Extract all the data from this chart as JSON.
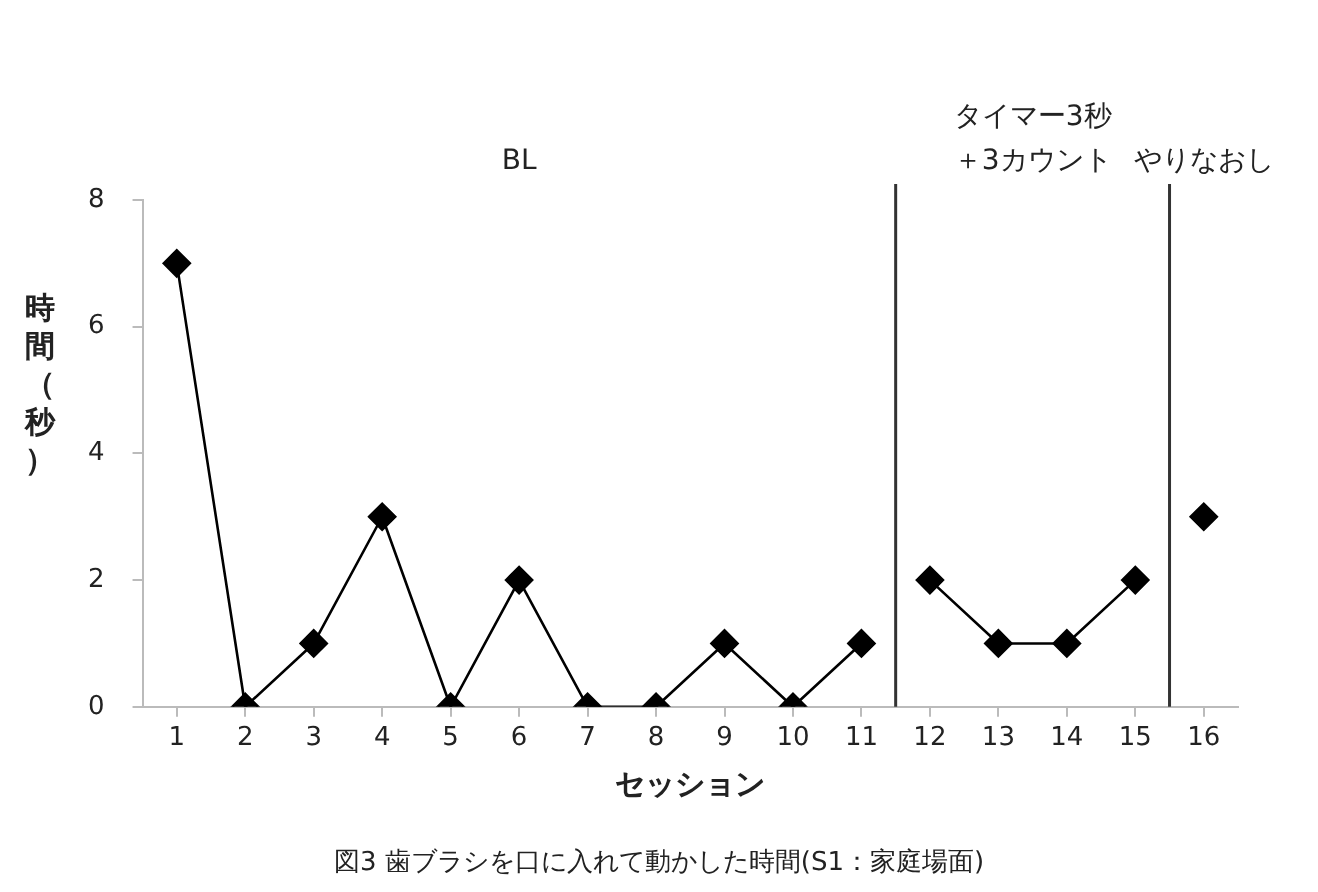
{
  "chart_data": {
    "type": "line",
    "xlabel": "セッション",
    "ylabel": "時間（秒）",
    "x": [
      1,
      2,
      3,
      4,
      5,
      6,
      7,
      8,
      9,
      10,
      11,
      12,
      13,
      14,
      15,
      16
    ],
    "xlim": [
      0.5,
      16.5
    ],
    "xticks": [
      1,
      2,
      3,
      4,
      5,
      6,
      7,
      8,
      9,
      10,
      11,
      12,
      13,
      14,
      15,
      16
    ],
    "ylim": [
      0,
      8
    ],
    "yticks": [
      0,
      2,
      4,
      6,
      8
    ],
    "series": [
      {
        "color": "#000000",
        "values": [
          7,
          0,
          1,
          3,
          0,
          2,
          0,
          0,
          1,
          0,
          1,
          null,
          null,
          null,
          null,
          null
        ]
      },
      {
        "color": "#000000",
        "values": [
          null,
          null,
          null,
          null,
          null,
          null,
          null,
          null,
          null,
          null,
          null,
          2,
          1,
          1,
          2,
          null
        ]
      },
      {
        "color": "#000000",
        "values": [
          null,
          null,
          null,
          null,
          null,
          null,
          null,
          null,
          null,
          null,
          null,
          null,
          null,
          null,
          null,
          3
        ]
      }
    ],
    "marker": "diamond",
    "line_style": "solid",
    "grid": false,
    "legend": false,
    "ref_lines": [
      {
        "axis": "x",
        "value": 11.5,
        "color": "#333333"
      },
      {
        "axis": "x",
        "value": 15.5,
        "color": "#333333"
      }
    ],
    "annotations": [
      "BL",
      "タイマー3秒＋3カウント",
      "やりなおし",
      "図3 歯ブラシを口に入れて動かした時間(S1：家庭場面)"
    ]
  }
}
